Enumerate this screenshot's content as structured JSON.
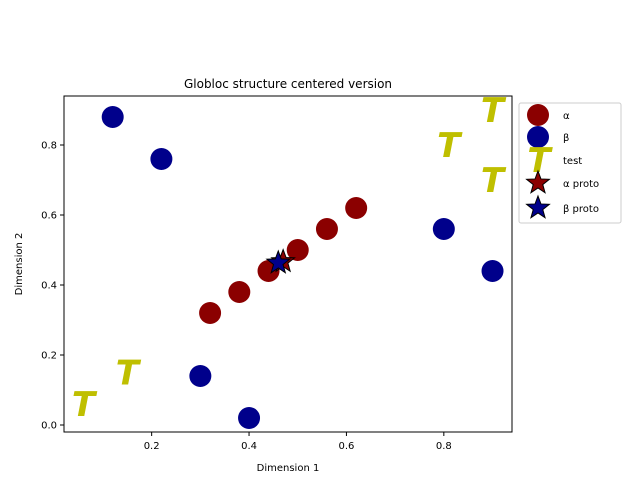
{
  "chart_data": {
    "type": "scatter",
    "title": "Globloc structure centered version",
    "xlabel": "Dimension 1",
    "ylabel": "Dimension 2",
    "xlim": [
      0.02,
      0.94
    ],
    "ylim": [
      -0.02,
      0.94
    ],
    "xticks": [
      0.2,
      0.4,
      0.6,
      0.8
    ],
    "yticks": [
      0.0,
      0.2,
      0.4,
      0.6,
      0.8
    ],
    "xtick_labels": [
      "0.2",
      "0.4",
      "0.6",
      "0.8"
    ],
    "ytick_labels": [
      "0.0",
      "0.2",
      "0.4",
      "0.6",
      "0.8"
    ],
    "grid": false,
    "legend_placement": "outside-right-top",
    "series": [
      {
        "name": "α",
        "marker": "circle",
        "color": "#8b0000",
        "points": [
          [
            0.32,
            0.32
          ],
          [
            0.38,
            0.38
          ],
          [
            0.44,
            0.44
          ],
          [
            0.5,
            0.5
          ],
          [
            0.56,
            0.56
          ],
          [
            0.62,
            0.62
          ]
        ]
      },
      {
        "name": "β",
        "marker": "circle",
        "color": "#00008b",
        "points": [
          [
            0.12,
            0.88
          ],
          [
            0.22,
            0.76
          ],
          [
            0.8,
            0.56
          ],
          [
            0.9,
            0.44
          ],
          [
            0.3,
            0.14
          ],
          [
            0.4,
            0.02
          ]
        ]
      },
      {
        "name": "test",
        "marker": "T",
        "color": "#bfbf00",
        "points": [
          [
            0.06,
            0.06
          ],
          [
            0.15,
            0.15
          ],
          [
            0.81,
            0.8
          ],
          [
            0.9,
            0.9
          ],
          [
            0.9,
            0.7
          ]
        ]
      },
      {
        "name": "α proto",
        "marker": "star",
        "color": "#8b0000",
        "points": [
          [
            0.47,
            0.467
          ]
        ]
      },
      {
        "name": "β proto",
        "marker": "star",
        "color": "#00008b",
        "points": [
          [
            0.46,
            0.463
          ]
        ]
      }
    ]
  },
  "legend": {
    "alpha": "α",
    "beta": "β",
    "test": "test",
    "alpha_proto": "α proto",
    "beta_proto": "β proto"
  }
}
